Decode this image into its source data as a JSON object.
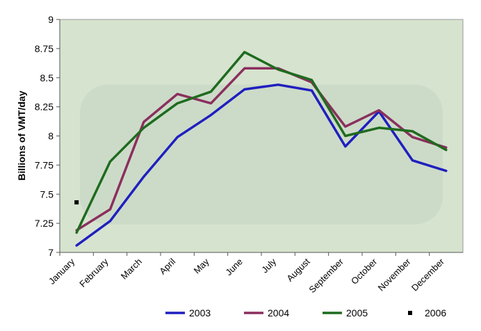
{
  "chart_data": {
    "type": "line",
    "ylabel": "Billions of VMT/day",
    "xlabel": "",
    "ylim": [
      7,
      9
    ],
    "yticks": [
      "7",
      "7.25",
      "7.5",
      "7.75",
      "8",
      "8.25",
      "8.5",
      "8.75",
      "9"
    ],
    "categories": [
      "January",
      "February",
      "March",
      "April",
      "May",
      "June",
      "July",
      "August",
      "September",
      "October",
      "November",
      "December"
    ],
    "legend_position": "bottom",
    "grid": false,
    "colors": {
      "2003": "#1f1fbf",
      "2004": "#8b2f5e",
      "2005": "#1e6b1e",
      "2006": "#000000",
      "plot_bg": "#d6e3cf"
    },
    "series": [
      {
        "name": "2003",
        "style": "line",
        "values": [
          7.06,
          7.27,
          7.65,
          7.99,
          8.18,
          8.4,
          8.44,
          8.39,
          7.91,
          8.21,
          7.79,
          7.7
        ]
      },
      {
        "name": "2004",
        "style": "line",
        "values": [
          7.19,
          7.37,
          8.12,
          8.36,
          8.28,
          8.58,
          8.58,
          8.46,
          8.08,
          8.22,
          7.99,
          7.9
        ]
      },
      {
        "name": "2005",
        "style": "line",
        "values": [
          7.17,
          7.78,
          8.07,
          8.28,
          8.38,
          8.72,
          8.57,
          8.48,
          8.0,
          8.07,
          8.04,
          7.88
        ]
      },
      {
        "name": "2006",
        "style": "marker",
        "values": [
          7.43,
          null,
          null,
          null,
          null,
          null,
          null,
          null,
          null,
          null,
          null,
          null
        ]
      }
    ]
  }
}
